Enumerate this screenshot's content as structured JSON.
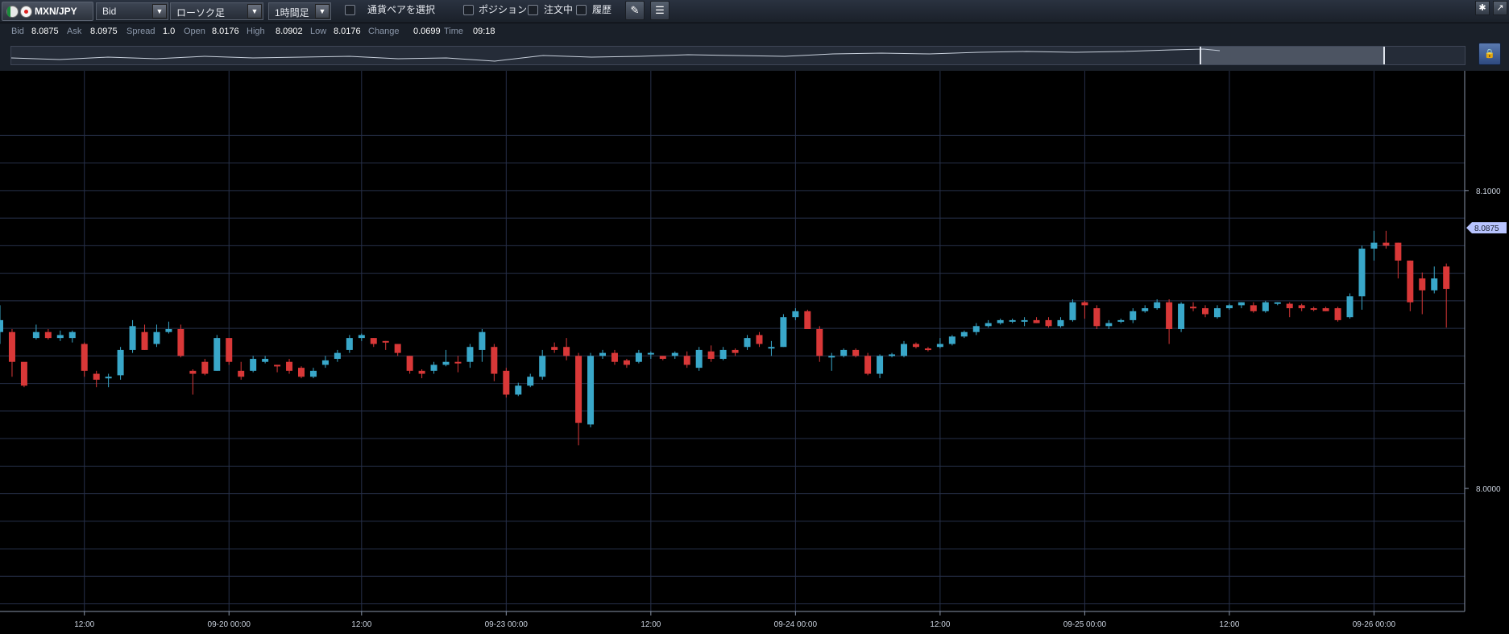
{
  "toolbar": {
    "pair_label": "MXN/JPY",
    "price_type": "Bid",
    "chart_type": "ローソク足",
    "timeframe": "1時間足",
    "select_pair_label": "通貨ペアを選択",
    "position_label": "ポジション",
    "orders_label": "注文中",
    "history_label": "履歴"
  },
  "info": {
    "bid_label": "Bid",
    "bid": "8.0875",
    "ask_label": "Ask",
    "ask": "8.0975",
    "spread_label": "Spread",
    "spread": "1.0",
    "open_label": "Open",
    "open": "8.0176",
    "high_label": "High",
    "high": "8.0902",
    "low_label": "Low",
    "low": "8.0176",
    "change_label": "Change",
    "change": "0.0699",
    "time_label": "Time",
    "time": "09:18"
  },
  "colors": {
    "up": "#39a7c9",
    "down": "#d93838",
    "background": "#000000",
    "grid": "#27304a",
    "axis_text": "#c8d0dc",
    "price_tag": "#b8c4ff"
  },
  "chart_data": {
    "type": "candlestick",
    "title": "",
    "xlabel": "",
    "ylabel": "",
    "ylim": [
      7.9587,
      8.1402
    ],
    "y_ticks": [
      {
        "value": 8.1,
        "label": "8.1000"
      },
      {
        "value": 8.0,
        "label": "8.0000"
      }
    ],
    "x_ticks": [
      "12:00",
      "09-20 00:00",
      "12:00",
      "09-23 00:00",
      "12:00",
      "09-24 00:00",
      "12:00",
      "09-25 00:00",
      "12:00",
      "09-26 00:00"
    ],
    "x_tick_index": [
      7,
      19,
      30,
      42,
      54,
      66,
      78,
      90,
      102,
      114
    ],
    "current_price": "8.0875",
    "grid": true,
    "candles": [
      [
        8.0525,
        8.0565,
        8.0615,
        8.0485
      ],
      [
        8.0525,
        8.0425,
        8.0535,
        8.0375
      ],
      [
        8.0425,
        8.0345,
        8.0405,
        8.034
      ],
      [
        8.0505,
        8.0525,
        8.055,
        8.05
      ],
      [
        8.0525,
        8.0505,
        8.0535,
        8.05
      ],
      [
        8.0505,
        8.0515,
        8.053,
        8.0495
      ],
      [
        8.0505,
        8.0525,
        8.053,
        8.049
      ],
      [
        8.0485,
        8.0395,
        8.049,
        8.0375
      ],
      [
        8.0385,
        8.0365,
        8.0395,
        8.034
      ],
      [
        8.037,
        8.0375,
        8.0385,
        8.034
      ],
      [
        8.038,
        8.0465,
        8.0475,
        8.0365
      ],
      [
        8.0465,
        8.0545,
        8.0565,
        8.0455
      ],
      [
        8.0525,
        8.0465,
        8.055,
        8.0465
      ],
      [
        8.0485,
        8.0525,
        8.055,
        8.0475
      ],
      [
        8.0525,
        8.0535,
        8.056,
        8.052
      ],
      [
        8.0535,
        8.0445,
        8.055,
        8.044
      ],
      [
        8.0395,
        8.0385,
        8.04,
        8.0315
      ],
      [
        8.0425,
        8.0385,
        8.0435,
        8.038
      ],
      [
        8.0395,
        8.0505,
        8.0515,
        8.0395
      ],
      [
        8.0505,
        8.0425,
        8.0505,
        8.0415
      ],
      [
        8.0395,
        8.0375,
        8.0425,
        8.0365
      ],
      [
        8.0395,
        8.0435,
        8.0445,
        8.039
      ],
      [
        8.0425,
        8.0435,
        8.0445,
        8.042
      ],
      [
        8.0415,
        8.041,
        8.0415,
        8.039
      ],
      [
        8.0425,
        8.0395,
        8.0435,
        8.0385
      ],
      [
        8.0405,
        8.0375,
        8.041,
        8.037
      ],
      [
        8.0375,
        8.0395,
        8.0405,
        8.037
      ],
      [
        8.0415,
        8.043,
        8.0445,
        8.0405
      ],
      [
        8.0435,
        8.0455,
        8.0465,
        8.0425
      ],
      [
        8.0465,
        8.0505,
        8.0515,
        8.0455
      ],
      [
        8.0505,
        8.0515,
        8.052,
        8.0495
      ],
      [
        8.0505,
        8.0485,
        8.0505,
        8.0475
      ],
      [
        8.0495,
        8.049,
        8.0495,
        8.0465
      ],
      [
        8.0485,
        8.0455,
        8.0485,
        8.0445
      ],
      [
        8.0445,
        8.0395,
        8.0445,
        8.0385
      ],
      [
        8.0395,
        8.0385,
        8.04,
        8.037
      ],
      [
        8.0395,
        8.0415,
        8.0425,
        8.0385
      ],
      [
        8.0415,
        8.0425,
        8.0465,
        8.041
      ],
      [
        8.0425,
        8.042,
        8.0445,
        8.039
      ],
      [
        8.0425,
        8.0475,
        8.0485,
        8.0405
      ],
      [
        8.0465,
        8.0525,
        8.0535,
        8.0425
      ],
      [
        8.0475,
        8.0385,
        8.0485,
        8.036
      ],
      [
        8.0395,
        8.0315,
        8.0405,
        8.0305
      ],
      [
        8.0315,
        8.0345,
        8.0355,
        8.031
      ],
      [
        8.0345,
        8.0375,
        8.0385,
        8.034
      ],
      [
        8.0375,
        8.0445,
        8.0465,
        8.0365
      ],
      [
        8.0475,
        8.0465,
        8.049,
        8.0455
      ],
      [
        8.0475,
        8.0445,
        8.0505,
        8.043
      ],
      [
        8.0445,
        8.022,
        8.0455,
        8.0145
      ],
      [
        8.0215,
        8.0445,
        8.0455,
        8.0205
      ],
      [
        8.0445,
        8.0455,
        8.0465,
        8.0435
      ],
      [
        8.0455,
        8.0425,
        8.0465,
        8.0415
      ],
      [
        8.043,
        8.0415,
        8.0435,
        8.0405
      ],
      [
        8.0425,
        8.0455,
        8.0465,
        8.042
      ],
      [
        8.0455,
        8.0455,
        8.046,
        8.0435
      ],
      [
        8.0445,
        8.0435,
        8.0445,
        8.043
      ],
      [
        8.0445,
        8.0455,
        8.046,
        8.0435
      ],
      [
        8.0445,
        8.0415,
        8.046,
        8.0405
      ],
      [
        8.0405,
        8.0465,
        8.0475,
        8.0395
      ],
      [
        8.046,
        8.0435,
        8.048,
        8.0425
      ],
      [
        8.0435,
        8.0465,
        8.0475,
        8.043
      ],
      [
        8.0465,
        8.0455,
        8.047,
        8.0445
      ],
      [
        8.0475,
        8.0505,
        8.0515,
        8.0465
      ],
      [
        8.0515,
        8.0485,
        8.0525,
        8.0475
      ],
      [
        8.0475,
        8.0475,
        8.0495,
        8.0445
      ],
      [
        8.0475,
        8.0575,
        8.0585,
        8.0475
      ],
      [
        8.0575,
        8.0595,
        8.0605,
        8.0565
      ],
      [
        8.0595,
        8.0535,
        8.06,
        8.0535
      ],
      [
        8.0535,
        8.0445,
        8.0545,
        8.0425
      ],
      [
        8.0445,
        8.0445,
        8.0455,
        8.0395
      ],
      [
        8.0445,
        8.0465,
        8.047,
        8.044
      ],
      [
        8.0465,
        8.0445,
        8.047,
        8.044
      ],
      [
        8.0445,
        8.0385,
        8.0455,
        8.038
      ],
      [
        8.0385,
        8.0445,
        8.045,
        8.037
      ],
      [
        8.0445,
        8.045,
        8.0455,
        8.044
      ],
      [
        8.0445,
        8.0485,
        8.0495,
        8.044
      ],
      [
        8.0485,
        8.0475,
        8.049,
        8.047
      ],
      [
        8.047,
        8.0465,
        8.0475,
        8.046
      ],
      [
        8.0475,
        8.0485,
        8.0505,
        8.047
      ],
      [
        8.0485,
        8.051,
        8.0515,
        8.048
      ],
      [
        8.051,
        8.0525,
        8.053,
        8.0505
      ],
      [
        8.0525,
        8.0545,
        8.0555,
        8.0515
      ],
      [
        8.0545,
        8.0555,
        8.0565,
        8.054
      ],
      [
        8.0555,
        8.0565,
        8.057,
        8.055
      ],
      [
        8.056,
        8.0565,
        8.057,
        8.0555
      ],
      [
        8.0565,
        8.0565,
        8.0575,
        8.0545
      ],
      [
        8.0565,
        8.0555,
        8.0575,
        8.0555
      ],
      [
        8.0565,
        8.0545,
        8.0575,
        8.054
      ],
      [
        8.0545,
        8.0565,
        8.0575,
        8.054
      ],
      [
        8.0565,
        8.0625,
        8.0635,
        8.056
      ],
      [
        8.0625,
        8.0615,
        8.063,
        8.057
      ],
      [
        8.0605,
        8.0545,
        8.0615,
        8.0535
      ],
      [
        8.0545,
        8.0555,
        8.0565,
        8.0535
      ],
      [
        8.0565,
        8.0565,
        8.057,
        8.0555
      ],
      [
        8.0565,
        8.0595,
        8.0605,
        8.0555
      ],
      [
        8.0595,
        8.0605,
        8.0615,
        8.059
      ],
      [
        8.0605,
        8.0625,
        8.0635,
        8.06
      ],
      [
        8.0625,
        8.0535,
        8.0635,
        8.0485
      ],
      [
        8.0535,
        8.062,
        8.0625,
        8.0525
      ],
      [
        8.061,
        8.0605,
        8.0625,
        8.0595
      ],
      [
        8.0605,
        8.0585,
        8.0615,
        8.0575
      ],
      [
        8.0575,
        8.0605,
        8.0615,
        8.057
      ],
      [
        8.0605,
        8.0615,
        8.062,
        8.06
      ],
      [
        8.0615,
        8.0625,
        8.0625,
        8.0605
      ],
      [
        8.0615,
        8.0595,
        8.0625,
        8.059
      ],
      [
        8.0595,
        8.0625,
        8.063,
        8.059
      ],
      [
        8.062,
        8.0625,
        8.0625,
        8.0615
      ],
      [
        8.062,
        8.0605,
        8.0625,
        8.0575
      ],
      [
        8.0615,
        8.0605,
        8.062,
        8.0595
      ],
      [
        8.0605,
        8.06,
        8.061,
        8.0595
      ],
      [
        8.0605,
        8.0595,
        8.061,
        8.0595
      ],
      [
        8.0605,
        8.0565,
        8.061,
        8.056
      ],
      [
        8.0575,
        8.0645,
        8.0655,
        8.057
      ],
      [
        8.0645,
        8.0805,
        8.0815,
        8.06
      ],
      [
        8.0805,
        8.0825,
        8.0865,
        8.0765
      ],
      [
        8.0825,
        8.0815,
        8.0865,
        8.0805
      ],
      [
        8.0825,
        8.0765,
        8.0825,
        8.0705
      ],
      [
        8.0765,
        8.0625,
        8.0765,
        8.0595
      ],
      [
        8.0705,
        8.0665,
        8.0725,
        8.0585
      ],
      [
        8.0665,
        8.0705,
        8.0745,
        8.0655
      ],
      [
        8.0745,
        8.067,
        8.0755,
        8.054
      ]
    ]
  }
}
